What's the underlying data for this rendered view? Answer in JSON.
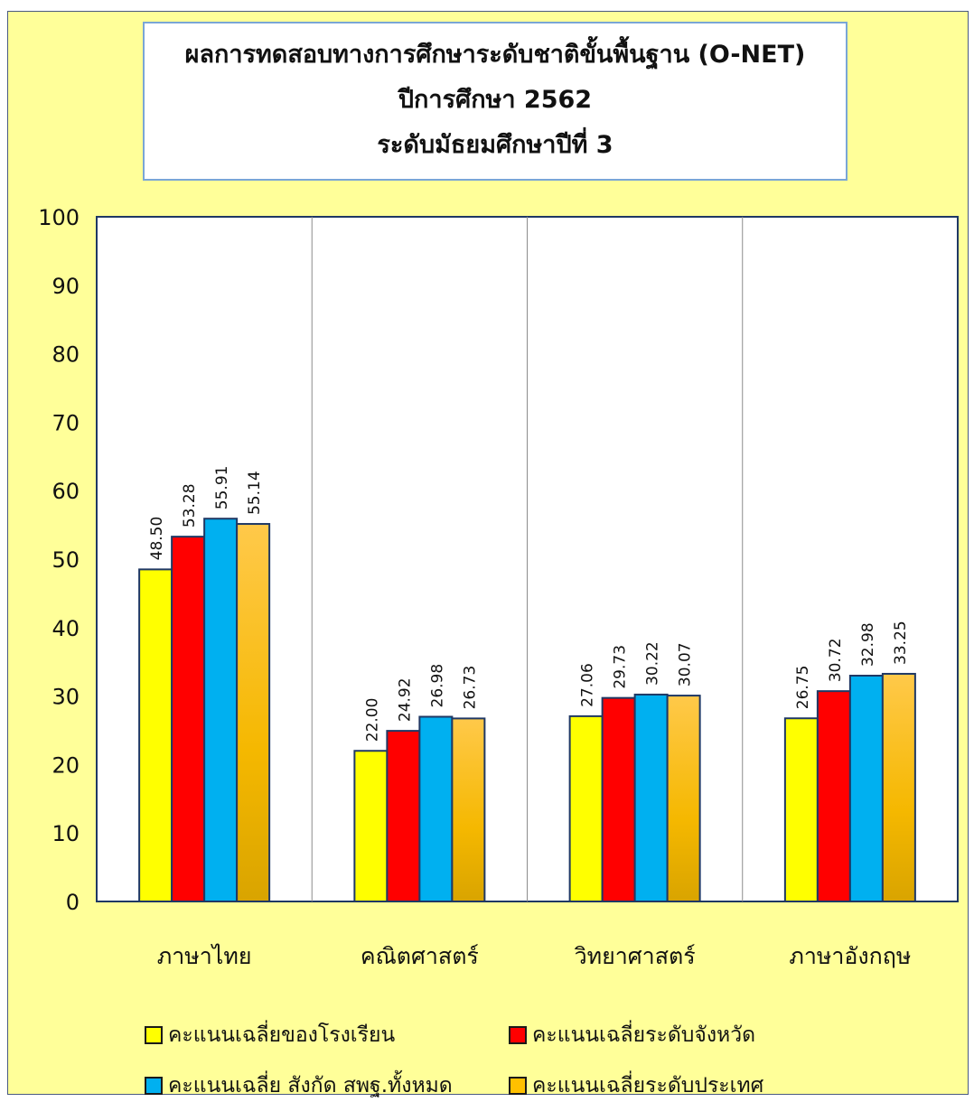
{
  "chart_data": {
    "type": "bar",
    "title": "ผลการทดสอบทางการศึกษาระดับชาติขั้นพื้นฐาน (O-NET)",
    "subtitle_lines": [
      "ปีการศึกษา 2562",
      "ระดับมัธยมศึกษาปีที่ 3"
    ],
    "categories": [
      "ภาษาไทย",
      "คณิตศาสตร์",
      "วิทยาศาสตร์",
      "ภาษาอังกฤษ"
    ],
    "ylim": [
      0,
      100
    ],
    "yticks": [
      "0",
      "10",
      "20",
      "30",
      "40",
      "50",
      "60",
      "70",
      "80",
      "90",
      "100"
    ],
    "grid": false,
    "legend_position": "bottom",
    "series": [
      {
        "name": "คะแนนเฉลี่ยของโรงเรียน",
        "color": "#ffff00",
        "values": [
          48.5,
          22.0,
          27.06,
          26.75
        ],
        "labels": [
          "48.50",
          "22.00",
          "27.06",
          "26.75"
        ]
      },
      {
        "name": "คะแนนเฉลี่ยระดับจังหวัด",
        "color": "#ff0000",
        "values": [
          53.28,
          24.92,
          29.73,
          30.72
        ],
        "labels": [
          "53.28",
          "24.92",
          "29.73",
          "30.72"
        ]
      },
      {
        "name": "คะแนนเฉลี่ย สังกัด สพฐ.ทั้งหมด",
        "color": "#00b0f0",
        "values": [
          55.91,
          26.98,
          30.22,
          32.98
        ],
        "labels": [
          "55.91",
          "26.98",
          "30.22",
          "32.98"
        ]
      },
      {
        "name": "คะแนนเฉลี่ยระดับประเทศ",
        "color": "#ffc000",
        "values": [
          55.14,
          26.73,
          30.07,
          33.25
        ],
        "labels": [
          "55.14",
          "26.73",
          "30.07",
          "33.25"
        ]
      }
    ]
  }
}
